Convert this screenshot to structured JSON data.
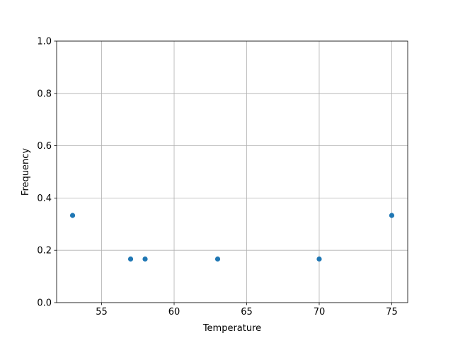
{
  "chart_data": {
    "type": "scatter",
    "title": "",
    "xlabel": "Temperature",
    "ylabel": "Frequency",
    "x": [
      53,
      57,
      58,
      63,
      70,
      75
    ],
    "y": [
      0.3333,
      0.1667,
      0.1667,
      0.1667,
      0.1667,
      0.3333
    ],
    "xlim": [
      51.9,
      76.1
    ],
    "ylim": [
      0.0,
      1.0
    ],
    "xticks": [
      55,
      60,
      65,
      70,
      75
    ],
    "xtick_labels": [
      "55",
      "60",
      "65",
      "70",
      "75"
    ],
    "yticks": [
      0.0,
      0.2,
      0.4,
      0.6,
      0.8,
      1.0
    ],
    "ytick_labels": [
      "0.0",
      "0.2",
      "0.4",
      "0.6",
      "0.8",
      "1.0"
    ],
    "grid": true,
    "marker_color": "#1f77b4"
  }
}
